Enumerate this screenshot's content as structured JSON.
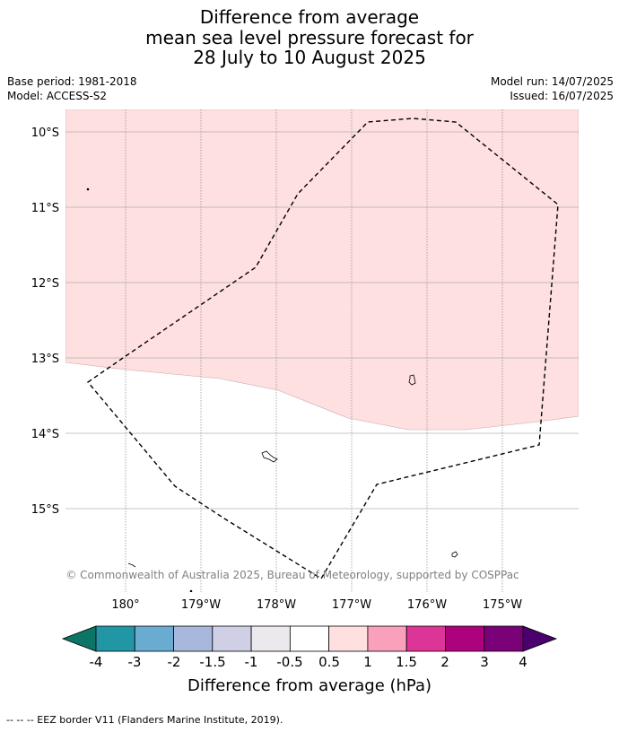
{
  "title": {
    "line1": "Difference from average",
    "line2": "mean sea level pressure forecast for",
    "line3": "28 July to 10 August 2025"
  },
  "meta": {
    "base_period": "Base period: 1981-2018",
    "model": "Model: ACCESS-S2",
    "model_run": "Model run: 14/07/2025",
    "issued": "Issued: 16/07/2025"
  },
  "map": {
    "lat_labels": [
      "10°S",
      "11°S",
      "12°S",
      "13°S",
      "14°S",
      "15°S"
    ],
    "lon_labels": [
      "180°",
      "179°W",
      "178°W",
      "177°W",
      "176°W",
      "175°W"
    ],
    "copyright": "© Commonwealth of Australia 2025, Bureau of Meteorology, supported by COSPPac",
    "region_fill_color": "#fde0df",
    "region_value_band": "0.5 to 1"
  },
  "colorbar": {
    "ticks": [
      "-4",
      "-3",
      "-2",
      "-1.5",
      "-1",
      "-0.5",
      "0.5",
      "1",
      "1.5",
      "2",
      "3",
      "4"
    ],
    "label": "Difference from average (hPa)",
    "colors": [
      "#0c7565",
      "#2196a5",
      "#6aabd2",
      "#a8b8dc",
      "#cfcfe6",
      "#ebe9ee",
      "#ffffff",
      "#fde0df",
      "#f9a0ba",
      "#dd3497",
      "#ad017e",
      "#7a0177",
      "#4b006e"
    ]
  },
  "footnote": "--  --  -- EEZ border V11 (Flanders Marine Institute, 2019)."
}
